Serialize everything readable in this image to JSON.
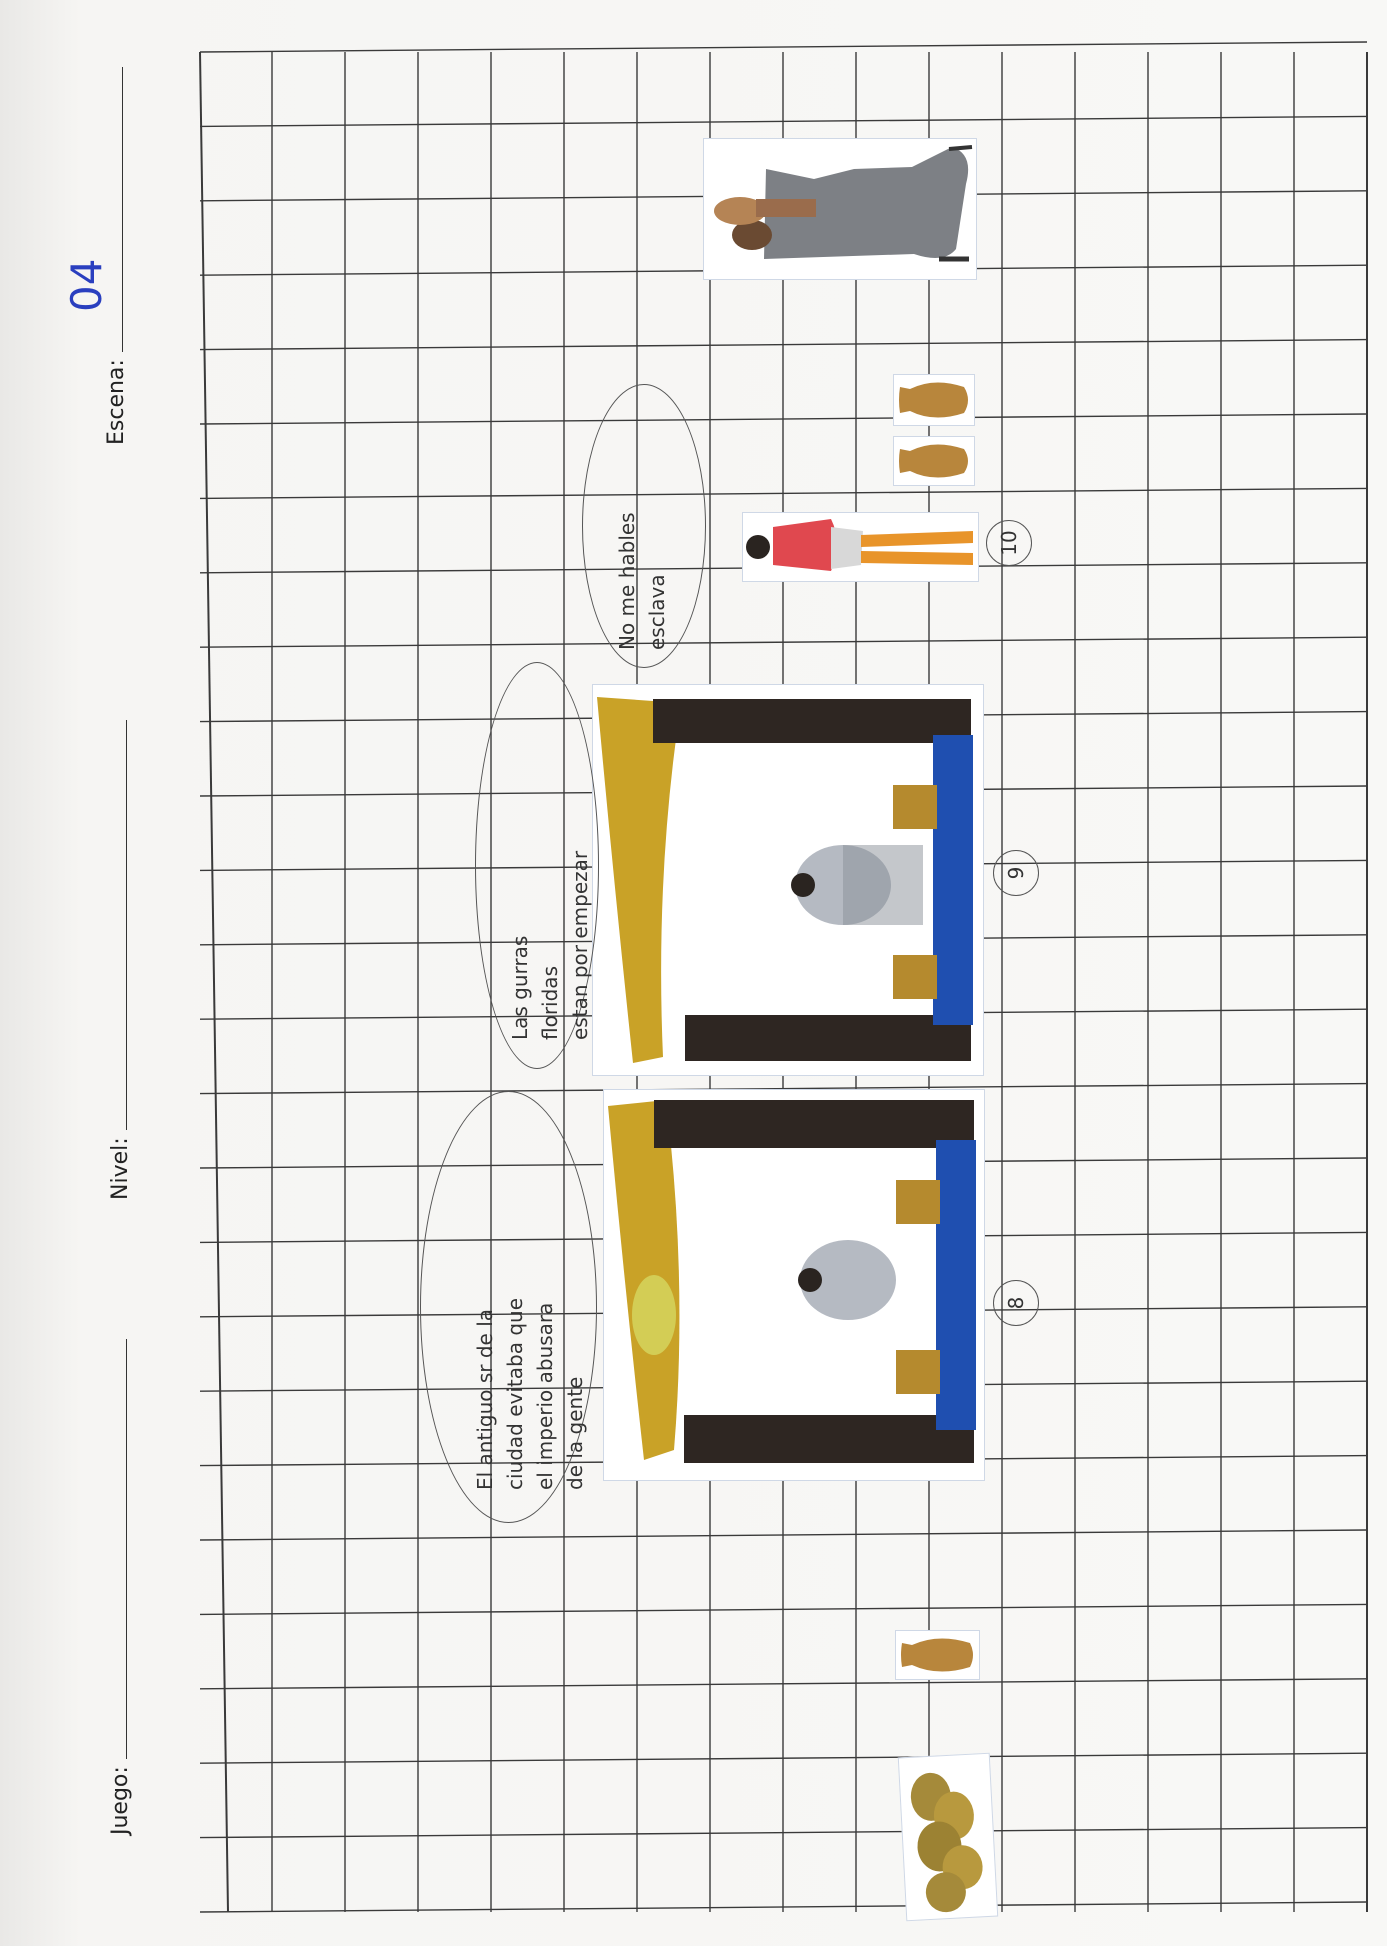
{
  "header": {
    "juego_label": "Juego:",
    "nivel_label": "Nivel:",
    "escena_label": "Escena:",
    "escena_value": "04"
  },
  "panels": [
    {
      "number": "8",
      "speech": [
        "El antiguo sr de la",
        "ciudad evitaba que",
        "el imperio abusara",
        "de la gente"
      ]
    },
    {
      "number": "9",
      "speech": [
        "Las gurras",
        "floridas",
        "estan por empezar"
      ]
    },
    {
      "number": "10",
      "speech": [
        "No me hables",
        "esclava"
      ]
    }
  ],
  "cutouts": [
    {
      "icon": "vase-icon"
    },
    {
      "icon": "vase-icon"
    },
    {
      "icon": "vase-icon"
    },
    {
      "icon": "bread-basket-icon"
    },
    {
      "icon": "woman-carrying-jar-icon"
    },
    {
      "icon": "man-red-tunic-icon"
    },
    {
      "icon": "temple-interior-icon"
    },
    {
      "icon": "temple-interior-icon"
    }
  ],
  "colors": {
    "grid_line": "#3a3a3a",
    "ink_blue": "#2a3fbf",
    "pencil": "#555555",
    "temple_roof": "#c9a227",
    "temple_pillar": "#2e2622",
    "temple_floor": "#1f4fb0",
    "tunic_red": "#e0484f",
    "skirt_orange": "#e8942a",
    "vase": "#b8863c"
  }
}
